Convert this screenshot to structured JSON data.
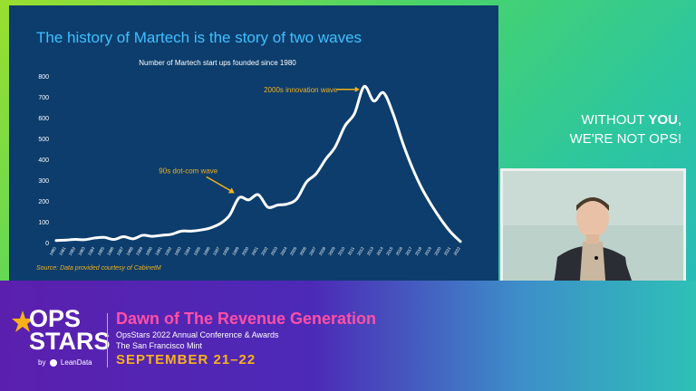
{
  "slide": {
    "title": "The history of Martech is the story of two waves",
    "source": "Source: Data provided courtesy of CabinetM"
  },
  "chart_data": {
    "type": "line",
    "title": "Number of Martech start ups founded since 1980",
    "xlabel": "",
    "ylabel": "",
    "ylim": [
      0,
      800
    ],
    "yticks": [
      0,
      100,
      200,
      300,
      400,
      500,
      600,
      700,
      800
    ],
    "x": [
      1980,
      1981,
      1982,
      1983,
      1984,
      1985,
      1986,
      1987,
      1988,
      1989,
      1990,
      1991,
      1992,
      1993,
      1994,
      1995,
      1996,
      1997,
      1998,
      1999,
      2000,
      2001,
      2002,
      2003,
      2004,
      2005,
      2006,
      2007,
      2008,
      2009,
      2010,
      2011,
      2012,
      2013,
      2014,
      2015,
      2016,
      2017,
      2018,
      2019,
      2020,
      2021,
      2022
    ],
    "series": [
      {
        "values": [
          10,
          12,
          15,
          14,
          22,
          25,
          15,
          28,
          18,
          35,
          30,
          35,
          40,
          55,
          55,
          60,
          70,
          90,
          130,
          215,
          205,
          230,
          170,
          180,
          185,
          210,
          290,
          330,
          400,
          460,
          560,
          620,
          750,
          680,
          720,
          620,
          480,
          360,
          260,
          180,
          110,
          50,
          5
        ],
        "color": "#ffffff"
      }
    ],
    "annotations": [
      {
        "text": "2000s innovation wave",
        "x": 2012,
        "y": 740
      },
      {
        "text": "90s dot-com wave",
        "x": 1999,
        "y": 220
      }
    ],
    "grid": false
  },
  "tagline": {
    "line1_pre": "WITHOUT ",
    "line1_bold": "YOU",
    "line1_post": ",",
    "line2": "WE'RE NOT OPS!"
  },
  "banner": {
    "logo_ops": "OPS",
    "logo_stars": "STARS",
    "logo_by": "by",
    "logo_brand": "LeanData",
    "title": "Dawn of The Revenue Generation",
    "subtitle_line1": "OpsStars 2022 Annual Conference & Awards",
    "subtitle_line2": "The San Francisco Mint",
    "date": "SEPTEMBER 21–22"
  },
  "colors": {
    "slide_bg": "#0c3d6c",
    "title_blue": "#3ec0ff",
    "accent_gold": "#f1b11c",
    "banner_pink": "#ff4fa6"
  }
}
